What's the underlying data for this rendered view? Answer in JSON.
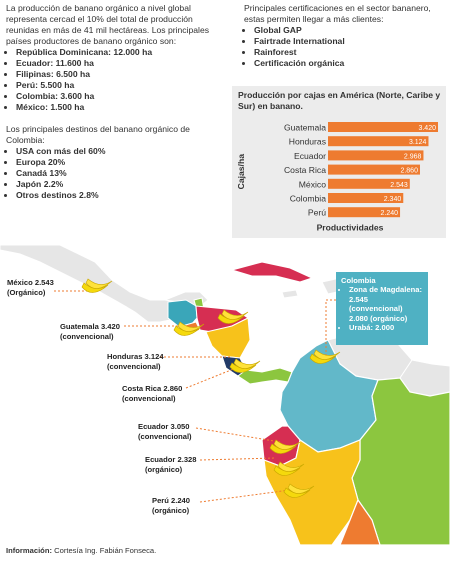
{
  "intro": {
    "text": "La producción de banano orgánico a nivel global representa cercad el 10% del total de producción reunidas en más de 41 mil hectáreas. Los principales países productores de banano orgánico son:",
    "producers": [
      "República Dominicana: 12.000 ha",
      "Ecuador: 11.600 ha",
      "Filipinas: 6.500 ha",
      "Perú: 5.500 ha",
      "Colombia: 3.600 ha",
      "México: 1.500 ha"
    ]
  },
  "destinations": {
    "text": "Los principales destinos del banano orgánico de Colombia:",
    "items": [
      "USA con más del 60%",
      "Europa 20%",
      "Canadá 13%",
      "Japón 2.2%",
      "Otros destinos 2.8%"
    ]
  },
  "certifications": {
    "text": "Principales certificaciones en el sector bananero, estas permiten llegar a más clientes:",
    "items": [
      "Global GAP",
      "Fairtrade International",
      "Rainforest",
      "Certificación orgánica"
    ]
  },
  "chart_data": {
    "type": "bar",
    "orientation": "horizontal",
    "title": "Producción por cajas en América (Norte, Caribe y Sur) en banano.",
    "xlabel": "Productividades",
    "ylabel": "Cajas/ha",
    "categories": [
      "Guatemala",
      "Honduras",
      "Ecuador",
      "Costa Rica",
      "México",
      "Colombia",
      "Perú"
    ],
    "values": [
      3420,
      3124,
      2968,
      2860,
      2543,
      2340,
      2240
    ],
    "value_labels": [
      "3.420",
      "3.124",
      "2.968",
      "2.860",
      "2.543",
      "2.340",
      "2.240"
    ],
    "xlim": [
      0,
      3420
    ],
    "bar_color": "#ee7b30",
    "grid": false
  },
  "map_labels": {
    "mexico": [
      "México 2.543",
      "(Orgánico)"
    ],
    "guatemala": [
      "Guatemala 3.420",
      "(convencional)"
    ],
    "honduras": [
      "Honduras 3.124",
      "(convencional)"
    ],
    "costarica": [
      "Costa Rica 2.860",
      "(convencional)"
    ],
    "ecuador1": [
      "Ecuador 3.050",
      "(convencional)"
    ],
    "ecuador2": [
      "Ecuador 2.328",
      "(orgánico)"
    ],
    "peru": [
      "Perú 2.240",
      "(orgánico)"
    ]
  },
  "colombia_box": {
    "title": "Colombia",
    "items": [
      "Zona de Magdalena: 2.545 (convencional) 2.080 (orgánico)",
      "Urabá: 2.000"
    ]
  },
  "footer": {
    "label": "Información:",
    "text": " Cortesía Ing. Fabián Fonseca."
  },
  "colors": {
    "accent_orange": "#ee7b30",
    "colombia_blue": "#4fb1c3",
    "panel_gray": "#ececec"
  }
}
